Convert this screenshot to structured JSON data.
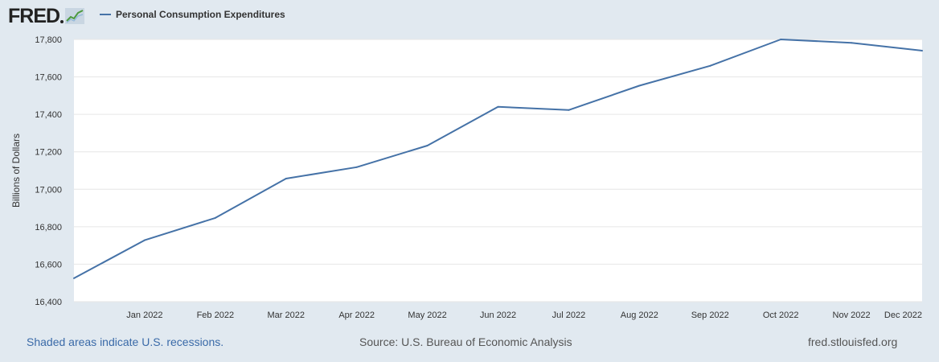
{
  "header": {
    "logo_text": "FRED",
    "logo_icon": "chart-line-icon"
  },
  "legend": {
    "label": "Personal Consumption Expenditures"
  },
  "footer": {
    "recession_note": "Shaded areas indicate U.S. recessions.",
    "source": "Source: U.S. Bureau of Economic Analysis",
    "site": "fred.stlouisfed.org"
  },
  "colors": {
    "series": "#4572a7",
    "page_background": "#e1e9f0",
    "plot_background": "#ffffff",
    "grid": "#e6e6e6"
  },
  "chart_data": {
    "type": "line",
    "title": "",
    "xlabel": "",
    "ylabel": "Billions of Dollars",
    "ylim": [
      16400,
      17800
    ],
    "yticks": [
      16400,
      16600,
      16800,
      17000,
      17200,
      17400,
      17600,
      17800
    ],
    "ytick_labels": [
      "16,400",
      "16,600",
      "16,800",
      "17,000",
      "17,200",
      "17,400",
      "17,600",
      "17,800"
    ],
    "x": [
      "2021-12",
      "2022-01",
      "2022-02",
      "2022-03",
      "2022-04",
      "2022-05",
      "2022-06",
      "2022-07",
      "2022-08",
      "2022-09",
      "2022-10",
      "2022-11",
      "2022-12"
    ],
    "xtick_labels": [
      "Jan 2022",
      "Feb 2022",
      "Mar 2022",
      "Apr 2022",
      "May 2022",
      "Jun 2022",
      "Jul 2022",
      "Aug 2022",
      "Sep 2022",
      "Oct 2022",
      "Nov 2022",
      "Dec 2022"
    ],
    "grid": true,
    "legend": "top-left",
    "series": [
      {
        "name": "Personal Consumption Expenditures",
        "values": [
          16525,
          16728,
          16847,
          17057,
          17118,
          17233,
          17440,
          17423,
          17553,
          17659,
          17800,
          17782,
          17740
        ]
      }
    ]
  }
}
